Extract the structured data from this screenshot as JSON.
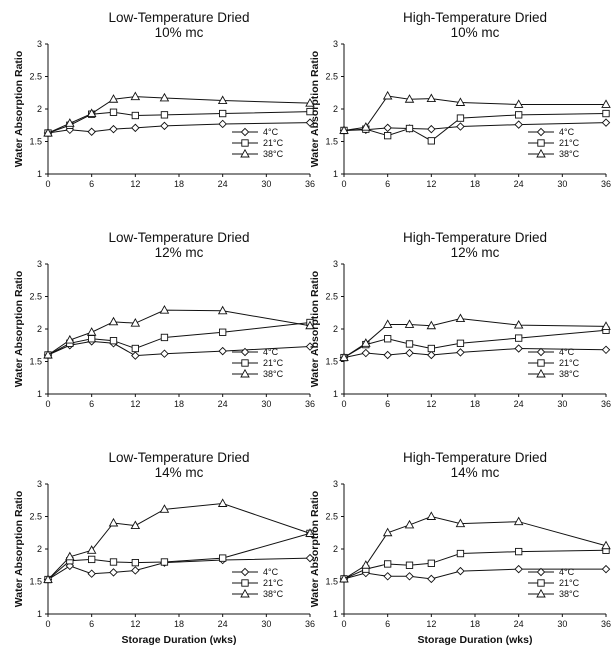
{
  "chart_data": [
    {
      "type": "line",
      "title": "Low-Temperature Dried",
      "subtitle": "10% mc",
      "ylabel": "Water Absorption Ratio",
      "xlabel": "",
      "x": [
        0,
        3,
        6,
        9,
        12,
        16,
        24,
        36
      ],
      "xticks": [
        0,
        6,
        12,
        18,
        24,
        30,
        36
      ],
      "yticks": [
        1,
        1.5,
        2,
        2.5,
        3
      ],
      "xlim": [
        0,
        36
      ],
      "ylim": [
        1,
        3
      ],
      "legend_position": "lower-right",
      "series": [
        {
          "name": "4°C",
          "marker": "diamond",
          "values": [
            1.63,
            1.68,
            1.65,
            1.69,
            1.71,
            1.74,
            1.77,
            1.79
          ]
        },
        {
          "name": "21°C",
          "marker": "square",
          "values": [
            1.63,
            1.75,
            1.92,
            1.95,
            1.9,
            1.91,
            1.93,
            1.96
          ]
        },
        {
          "name": "38°C",
          "marker": "triangle",
          "values": [
            1.63,
            1.78,
            1.93,
            2.15,
            2.19,
            2.17,
            2.13,
            2.09
          ]
        }
      ]
    },
    {
      "type": "line",
      "title": "High-Temperature Dried",
      "subtitle": "10% mc",
      "ylabel": "Water Absorption Ratio",
      "xlabel": "",
      "x": [
        0,
        3,
        6,
        9,
        12,
        16,
        24,
        36
      ],
      "xticks": [
        0,
        6,
        12,
        18,
        24,
        30,
        36
      ],
      "yticks": [
        1,
        1.5,
        2,
        2.5,
        3
      ],
      "xlim": [
        0,
        36
      ],
      "ylim": [
        1,
        3
      ],
      "legend_position": "lower-right",
      "series": [
        {
          "name": "4°C",
          "marker": "diamond",
          "values": [
            1.67,
            1.68,
            1.71,
            1.7,
            1.69,
            1.73,
            1.76,
            1.79
          ]
        },
        {
          "name": "21°C",
          "marker": "square",
          "values": [
            1.67,
            1.69,
            1.59,
            1.7,
            1.51,
            1.86,
            1.91,
            1.93
          ]
        },
        {
          "name": "38°C",
          "marker": "triangle",
          "values": [
            1.67,
            1.72,
            2.2,
            2.15,
            2.16,
            2.1,
            2.07,
            2.07
          ]
        }
      ]
    },
    {
      "type": "line",
      "title": "Low-Temperature Dried",
      "subtitle": "12% mc",
      "ylabel": "Water Absorption Ratio",
      "xlabel": "",
      "x": [
        0,
        3,
        6,
        9,
        12,
        16,
        24,
        36
      ],
      "xticks": [
        0,
        6,
        12,
        18,
        24,
        30,
        36
      ],
      "yticks": [
        1,
        1.5,
        2,
        2.5,
        3
      ],
      "xlim": [
        0,
        36
      ],
      "ylim": [
        1,
        3
      ],
      "legend_position": "lower-right",
      "series": [
        {
          "name": "4°C",
          "marker": "diamond",
          "values": [
            1.6,
            1.75,
            1.81,
            1.78,
            1.59,
            1.62,
            1.66,
            1.73
          ]
        },
        {
          "name": "21°C",
          "marker": "square",
          "values": [
            1.6,
            1.78,
            1.85,
            1.82,
            1.7,
            1.87,
            1.95,
            2.1
          ]
        },
        {
          "name": "38°C",
          "marker": "triangle",
          "values": [
            1.6,
            1.83,
            1.95,
            2.11,
            2.09,
            2.29,
            2.28,
            2.05
          ]
        }
      ]
    },
    {
      "type": "line",
      "title": "High-Temperature Dried",
      "subtitle": "12% mc",
      "ylabel": "Water Absorption Ratio",
      "xlabel": "",
      "x": [
        0,
        3,
        6,
        9,
        12,
        16,
        24,
        36
      ],
      "xticks": [
        0,
        6,
        12,
        18,
        24,
        30,
        36
      ],
      "yticks": [
        1,
        1.5,
        2,
        2.5,
        3
      ],
      "xlim": [
        0,
        36
      ],
      "ylim": [
        1,
        3
      ],
      "legend_position": "lower-right",
      "series": [
        {
          "name": "4°C",
          "marker": "diamond",
          "values": [
            1.56,
            1.63,
            1.6,
            1.63,
            1.6,
            1.64,
            1.7,
            1.68
          ]
        },
        {
          "name": "21°C",
          "marker": "square",
          "values": [
            1.56,
            1.76,
            1.85,
            1.77,
            1.7,
            1.78,
            1.86,
            1.98
          ]
        },
        {
          "name": "38°C",
          "marker": "triangle",
          "values": [
            1.56,
            1.78,
            2.07,
            2.07,
            2.05,
            2.16,
            2.06,
            2.04
          ]
        }
      ]
    },
    {
      "type": "line",
      "title": "Low-Temperature Dried",
      "subtitle": "14% mc",
      "ylabel": "Water Absorption Ratio",
      "xlabel": "Storage Duration (wks)",
      "x": [
        0,
        3,
        6,
        9,
        12,
        16,
        24,
        36
      ],
      "xticks": [
        0,
        6,
        12,
        18,
        24,
        30,
        36
      ],
      "yticks": [
        1,
        1.5,
        2,
        2.5,
        3
      ],
      "xlim": [
        0,
        36
      ],
      "ylim": [
        1,
        3
      ],
      "legend_position": "lower-right",
      "series": [
        {
          "name": "4°C",
          "marker": "diamond",
          "values": [
            1.53,
            1.74,
            1.62,
            1.64,
            1.67,
            1.79,
            1.83,
            1.86
          ]
        },
        {
          "name": "21°C",
          "marker": "square",
          "values": [
            1.53,
            1.82,
            1.84,
            1.8,
            1.79,
            1.8,
            1.86,
            2.24
          ]
        },
        {
          "name": "38°C",
          "marker": "triangle",
          "values": [
            1.53,
            1.88,
            1.98,
            2.4,
            2.36,
            2.61,
            2.7,
            2.24
          ]
        }
      ]
    },
    {
      "type": "line",
      "title": "High-Temperature Dried",
      "subtitle": "14% mc",
      "ylabel": "Water Absorption Ratio",
      "xlabel": "Storage Duration (wks)",
      "x": [
        0,
        3,
        6,
        9,
        12,
        16,
        24,
        36
      ],
      "xticks": [
        0,
        6,
        12,
        18,
        24,
        30,
        36
      ],
      "yticks": [
        1,
        1.5,
        2,
        2.5,
        3
      ],
      "xlim": [
        0,
        36
      ],
      "ylim": [
        1,
        3
      ],
      "legend_position": "lower-right",
      "series": [
        {
          "name": "4°C",
          "marker": "diamond",
          "values": [
            1.54,
            1.63,
            1.58,
            1.58,
            1.54,
            1.66,
            1.69,
            1.69
          ]
        },
        {
          "name": "21°C",
          "marker": "square",
          "values": [
            1.54,
            1.69,
            1.77,
            1.75,
            1.78,
            1.93,
            1.96,
            1.98
          ]
        },
        {
          "name": "38°C",
          "marker": "triangle",
          "values": [
            1.54,
            1.75,
            2.25,
            2.37,
            2.5,
            2.39,
            2.42,
            2.05
          ]
        }
      ]
    }
  ]
}
